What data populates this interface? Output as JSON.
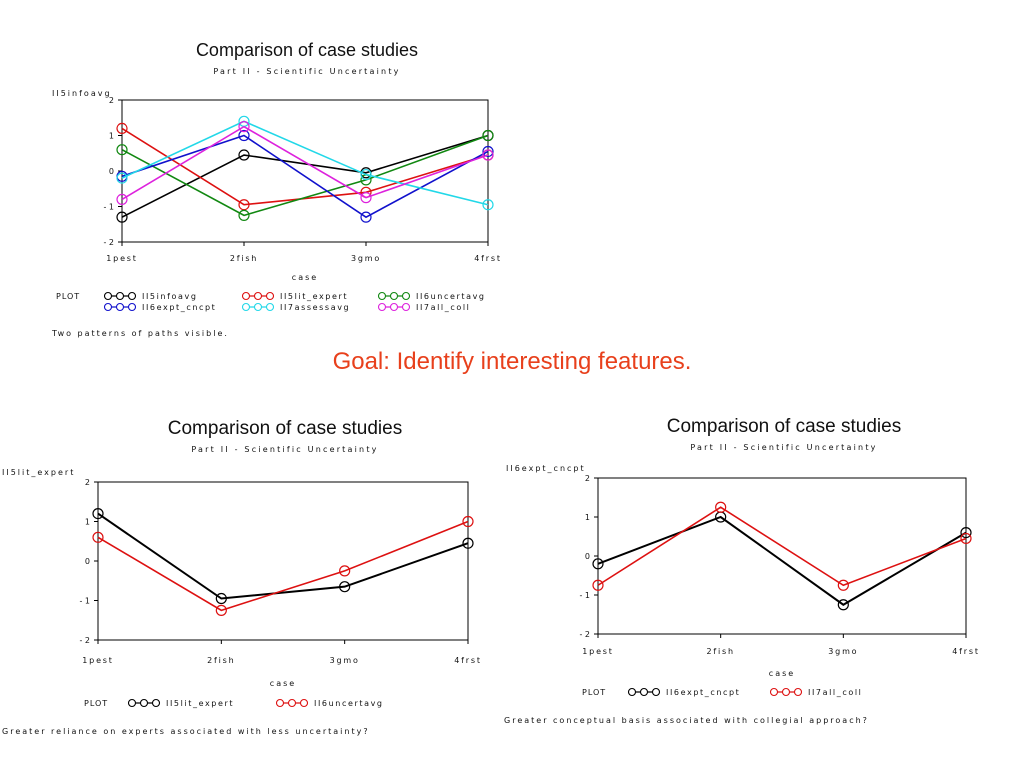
{
  "slide": {
    "goal_text": "Goal: Identify interesting features."
  },
  "chart_data": [
    {
      "type": "line",
      "title": "Comparison of case studies",
      "subtitle": "Part II - Scientific Uncertainty",
      "ylabel": "II5infoavg",
      "xlabel": "case",
      "categories": [
        "1pest",
        "2fish",
        "3gmo",
        "4frst"
      ],
      "ylim": [
        -2,
        2
      ],
      "yticks": [
        2,
        1,
        0,
        -1,
        -2
      ],
      "ytick_labels": [
        "2",
        "1",
        "0",
        "- 1",
        "- 2"
      ],
      "legend_title": "PLOT",
      "series": [
        {
          "name": "II5infoavg",
          "color": "#000000",
          "values": [
            -1.3,
            0.45,
            -0.05,
            1.0
          ]
        },
        {
          "name": "II5lit_expert",
          "color": "#dd1111",
          "values": [
            1.2,
            -0.95,
            -0.6,
            0.45
          ]
        },
        {
          "name": "II6uncertavg",
          "color": "#118811",
          "values": [
            0.6,
            -1.25,
            -0.25,
            1.0
          ]
        },
        {
          "name": "II6expt_cncpt",
          "color": "#1111cc",
          "values": [
            -0.15,
            1.0,
            -1.3,
            0.55
          ]
        },
        {
          "name": "II7assessavg",
          "color": "#22d8e8",
          "values": [
            -0.2,
            1.4,
            -0.1,
            -0.95
          ]
        },
        {
          "name": "II7all_coll",
          "color": "#dd22dd",
          "values": [
            -0.8,
            1.25,
            -0.75,
            0.45
          ]
        }
      ],
      "footnote": "Two patterns of paths visible."
    },
    {
      "type": "line",
      "title": "Comparison of case studies",
      "subtitle": "Part II - Scientific Uncertainty",
      "ylabel": "II5lit_expert",
      "xlabel": "case",
      "categories": [
        "1pest",
        "2fish",
        "3gmo",
        "4frst"
      ],
      "ylim": [
        -2,
        2
      ],
      "yticks": [
        2,
        1,
        0,
        -1,
        -2
      ],
      "ytick_labels": [
        "2",
        "1",
        "0",
        "- 1",
        "- 2"
      ],
      "legend_title": "PLOT",
      "series": [
        {
          "name": "II5lit_expert",
          "color": "#000000",
          "values": [
            1.2,
            -0.95,
            -0.65,
            0.45
          ]
        },
        {
          "name": "II6uncertavg",
          "color": "#dd1111",
          "values": [
            0.6,
            -1.25,
            -0.25,
            1.0
          ]
        }
      ],
      "footnote": "Greater reliance on experts associated with less uncertainty?"
    },
    {
      "type": "line",
      "title": "Comparison of case studies",
      "subtitle": "Part II - Scientific Uncertainty",
      "ylabel": "II6expt_cncpt",
      "xlabel": "case",
      "categories": [
        "1pest",
        "2fish",
        "3gmo",
        "4frst"
      ],
      "ylim": [
        -2,
        2
      ],
      "yticks": [
        2,
        1,
        0,
        -1,
        -2
      ],
      "ytick_labels": [
        "2",
        "1",
        "0",
        "- 1",
        "- 2"
      ],
      "legend_title": "PLOT",
      "series": [
        {
          "name": "II6expt_cncpt",
          "color": "#000000",
          "values": [
            -0.2,
            1.0,
            -1.25,
            0.6
          ]
        },
        {
          "name": "II7all_coll",
          "color": "#dd1111",
          "values": [
            -0.75,
            1.25,
            -0.75,
            0.45
          ]
        }
      ],
      "footnote": "Greater conceptual basis associated with collegial approach?"
    }
  ]
}
